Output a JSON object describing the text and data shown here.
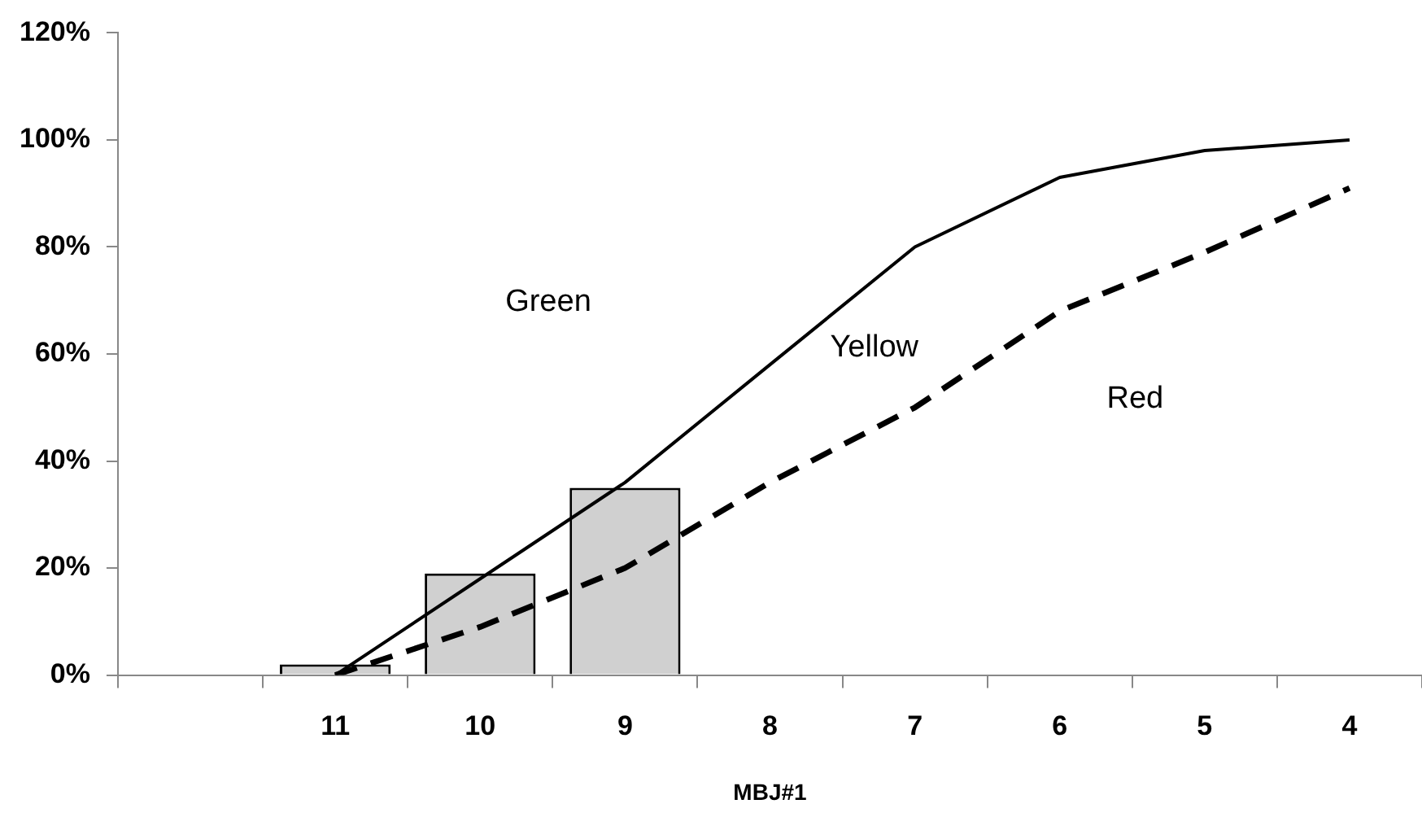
{
  "chart_data": {
    "type": "bar",
    "xlabel": "MBJ#1",
    "categories": [
      null,
      "11",
      "10",
      "9",
      "8",
      "7",
      "6",
      "5",
      "4"
    ],
    "series": [
      {
        "color": "#d0d0d0",
        "values": [
          null,
          2,
          19,
          35,
          null,
          null,
          null,
          null,
          null
        ]
      },
      {
        "type": "line",
        "color": "#000000",
        "line_style": "solid",
        "values": [
          null,
          0,
          18,
          36,
          58,
          80,
          93,
          98,
          100
        ]
      },
      {
        "type": "line",
        "color": "#000000",
        "line_style": "dashed",
        "values": [
          null,
          0,
          9,
          20,
          36,
          50,
          68,
          79,
          91
        ]
      }
    ],
    "ylim": [
      0,
      120
    ],
    "yticks": [
      {
        "value": 0,
        "label": "0%"
      },
      {
        "value": 20,
        "label": "20%"
      },
      {
        "value": 40,
        "label": "40%"
      },
      {
        "value": 60,
        "label": "60%"
      },
      {
        "value": 80,
        "label": "80%"
      },
      {
        "value": 100,
        "label": "100%"
      },
      {
        "value": 120,
        "label": "120%"
      }
    ],
    "annotations": [
      "Green",
      "Yellow",
      "Red"
    ],
    "grid": false,
    "legend": false,
    "marker": "none"
  }
}
